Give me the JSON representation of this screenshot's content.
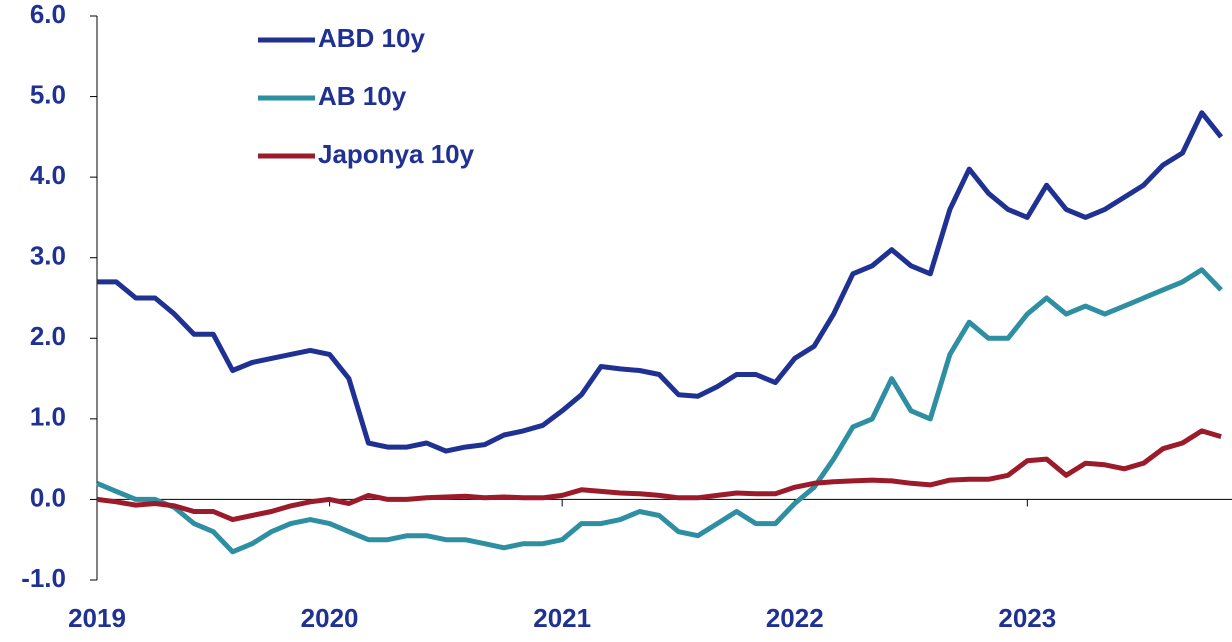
{
  "chart_data": {
    "type": "line",
    "x": [
      2019,
      2019.083,
      2019.167,
      2019.25,
      2019.333,
      2019.417,
      2019.5,
      2019.583,
      2019.667,
      2019.75,
      2019.833,
      2019.917,
      2020,
      2020.083,
      2020.167,
      2020.25,
      2020.333,
      2020.417,
      2020.5,
      2020.583,
      2020.667,
      2020.75,
      2020.833,
      2020.917,
      2021,
      2021.083,
      2021.167,
      2021.25,
      2021.333,
      2021.417,
      2021.5,
      2021.583,
      2021.667,
      2021.75,
      2021.833,
      2021.917,
      2022,
      2022.083,
      2022.167,
      2022.25,
      2022.333,
      2022.417,
      2022.5,
      2022.583,
      2022.667,
      2022.75,
      2022.833,
      2022.917,
      2023,
      2023.083,
      2023.167,
      2023.25,
      2023.333,
      2023.417,
      2023.5,
      2023.583,
      2023.667,
      2023.75,
      2023.833
    ],
    "series": [
      {
        "name": "ABD 10y",
        "color": "#1f3193",
        "values": [
          2.7,
          2.7,
          2.5,
          2.5,
          2.3,
          2.05,
          2.05,
          1.6,
          1.7,
          1.75,
          1.8,
          1.85,
          1.8,
          1.5,
          0.7,
          0.65,
          0.65,
          0.7,
          0.6,
          0.65,
          0.68,
          0.8,
          0.85,
          0.92,
          1.1,
          1.3,
          1.65,
          1.62,
          1.6,
          1.55,
          1.3,
          1.28,
          1.4,
          1.55,
          1.55,
          1.45,
          1.75,
          1.9,
          2.3,
          2.8,
          2.9,
          3.1,
          2.9,
          2.8,
          3.6,
          4.1,
          3.8,
          3.6,
          3.5,
          3.9,
          3.6,
          3.5,
          3.6,
          3.75,
          3.9,
          4.15,
          4.3,
          4.8,
          4.5
        ]
      },
      {
        "name": "AB 10y",
        "color": "#2e8fa3",
        "values": [
          0.2,
          0.1,
          0.0,
          0.0,
          -0.1,
          -0.3,
          -0.4,
          -0.65,
          -0.55,
          -0.4,
          -0.3,
          -0.25,
          -0.3,
          -0.4,
          -0.5,
          -0.5,
          -0.45,
          -0.45,
          -0.5,
          -0.5,
          -0.55,
          -0.6,
          -0.55,
          -0.55,
          -0.5,
          -0.3,
          -0.3,
          -0.25,
          -0.15,
          -0.2,
          -0.4,
          -0.45,
          -0.3,
          -0.15,
          -0.3,
          -0.3,
          -0.05,
          0.15,
          0.5,
          0.9,
          1.0,
          1.5,
          1.1,
          1.0,
          1.8,
          2.2,
          2.0,
          2.0,
          2.3,
          2.5,
          2.3,
          2.4,
          2.3,
          2.4,
          2.5,
          2.6,
          2.7,
          2.85,
          2.6
        ]
      },
      {
        "name": "Japonya 10y",
        "color": "#9b1b2a",
        "values": [
          0.0,
          -0.03,
          -0.07,
          -0.05,
          -0.08,
          -0.15,
          -0.15,
          -0.25,
          -0.2,
          -0.15,
          -0.08,
          -0.03,
          0.0,
          -0.05,
          0.05,
          0.0,
          0.0,
          0.02,
          0.03,
          0.04,
          0.02,
          0.03,
          0.02,
          0.02,
          0.05,
          0.12,
          0.1,
          0.08,
          0.07,
          0.05,
          0.02,
          0.02,
          0.05,
          0.08,
          0.07,
          0.07,
          0.15,
          0.2,
          0.22,
          0.23,
          0.24,
          0.23,
          0.2,
          0.18,
          0.24,
          0.25,
          0.25,
          0.3,
          0.48,
          0.5,
          0.3,
          0.45,
          0.43,
          0.38,
          0.45,
          0.63,
          0.7,
          0.85,
          0.78
        ]
      }
    ],
    "xlim": [
      2019,
      2023.88
    ],
    "xticks": [
      2019,
      2020,
      2021,
      2022,
      2023
    ],
    "ylim": [
      -1,
      6
    ],
    "yticks": [
      {
        "value": -1,
        "label": "-1.0"
      },
      {
        "value": 0,
        "label": "0.0"
      },
      {
        "value": 1,
        "label": "1.0"
      },
      {
        "value": 2,
        "label": "2.0"
      },
      {
        "value": 3,
        "label": "3.0"
      },
      {
        "value": 4,
        "label": "4.0"
      },
      {
        "value": 5,
        "label": "5.0"
      },
      {
        "value": 6,
        "label": "6.0"
      }
    ],
    "legend": "top-left"
  }
}
